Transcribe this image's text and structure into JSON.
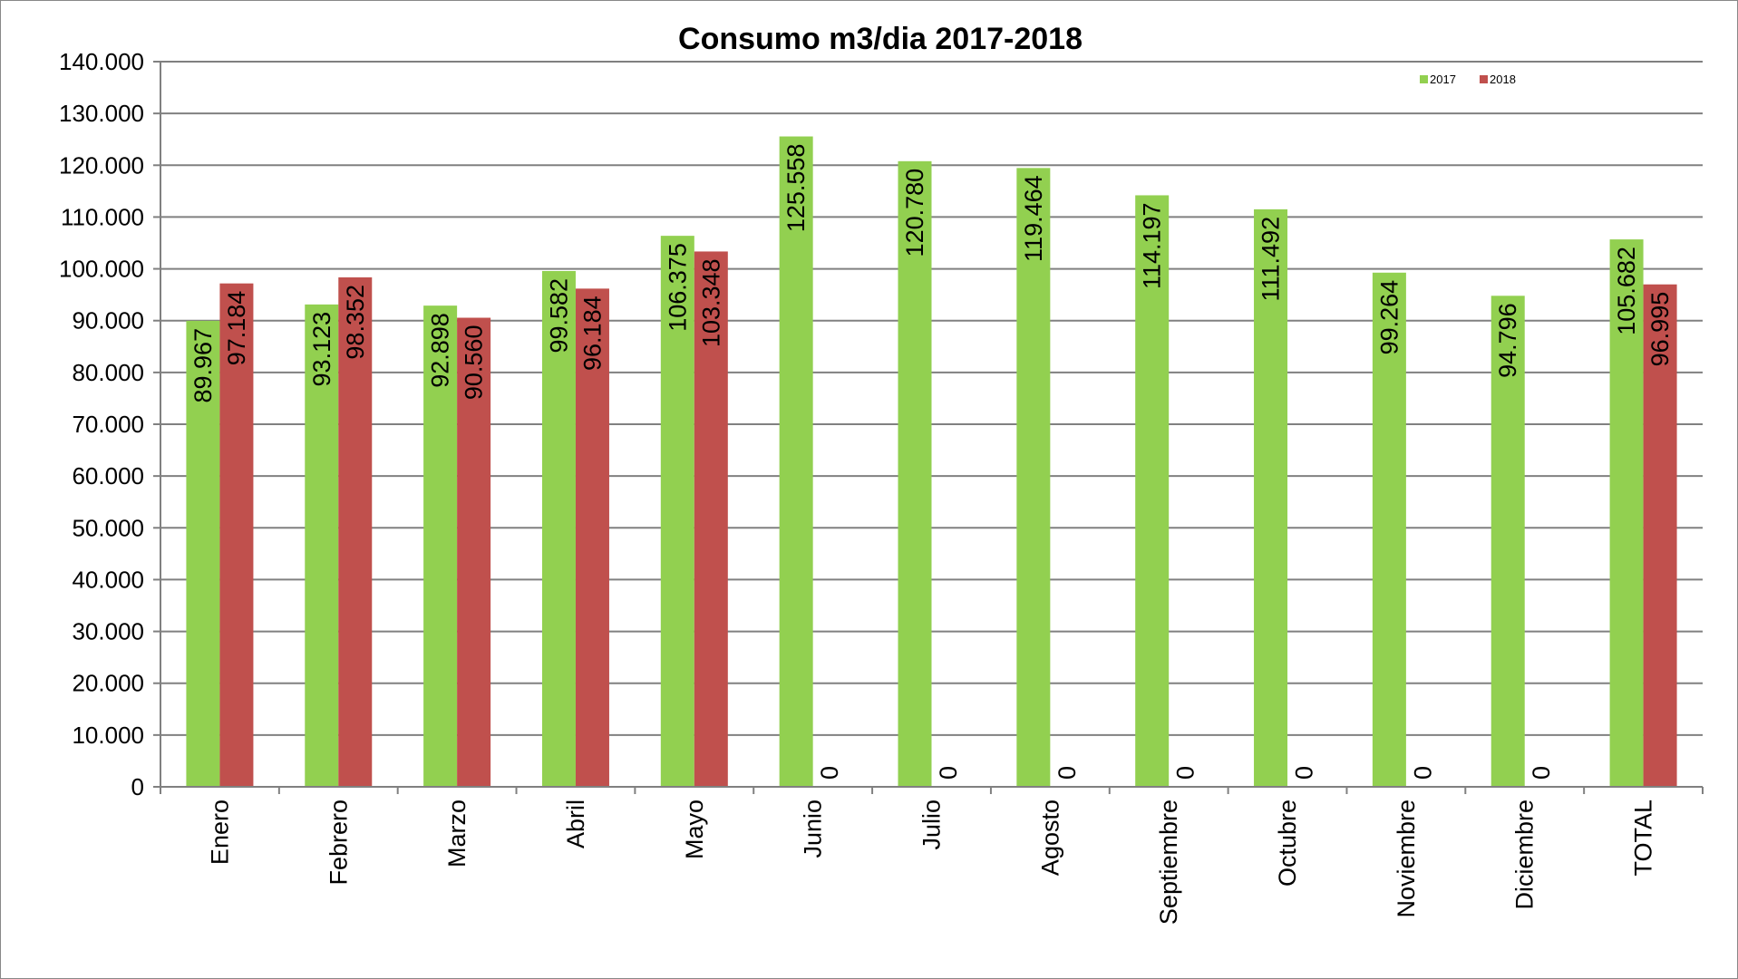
{
  "chart_data": {
    "type": "bar",
    "title": "Consumo m3/dia 2017-2018",
    "xlabel": "",
    "ylabel": "",
    "ylim": [
      0,
      140000
    ],
    "yticks": [
      0,
      10000,
      20000,
      30000,
      40000,
      50000,
      60000,
      70000,
      80000,
      90000,
      100000,
      110000,
      120000,
      130000,
      140000
    ],
    "ytick_labels": [
      "0",
      "10.000",
      "20.000",
      "30.000",
      "40.000",
      "50.000",
      "60.000",
      "70.000",
      "80.000",
      "90.000",
      "100.000",
      "110.000",
      "120.000",
      "130.000",
      "140.000"
    ],
    "grid": true,
    "legend_position": "top-right",
    "categories": [
      "Enero",
      "Febrero",
      "Marzo",
      "Abril",
      "Mayo",
      "Junio",
      "Julio",
      "Agosto",
      "Septiembre",
      "Octubre",
      "Noviembre",
      "Diciembre",
      "TOTAL"
    ],
    "series": [
      {
        "name": "2017",
        "color": "#92d050",
        "values": [
          89967,
          93123,
          92898,
          99582,
          106375,
          125558,
          120780,
          119464,
          114197,
          111492,
          99264,
          94796,
          105682
        ],
        "labels": [
          "89.967",
          "93.123",
          "92.898",
          "99.582",
          "106.375",
          "125.558",
          "120.780",
          "119.464",
          "114.197",
          "111.492",
          "99.264",
          "94.796",
          "105.682"
        ]
      },
      {
        "name": "2018",
        "color": "#c0504d",
        "values": [
          97184,
          98352,
          90560,
          96184,
          103348,
          0,
          0,
          0,
          0,
          0,
          0,
          0,
          96995
        ],
        "labels": [
          "97.184",
          "98.352",
          "90.560",
          "96.184",
          "103.348",
          "0",
          "0",
          "0",
          "0",
          "0",
          "0",
          "0",
          "96.995"
        ]
      }
    ]
  }
}
